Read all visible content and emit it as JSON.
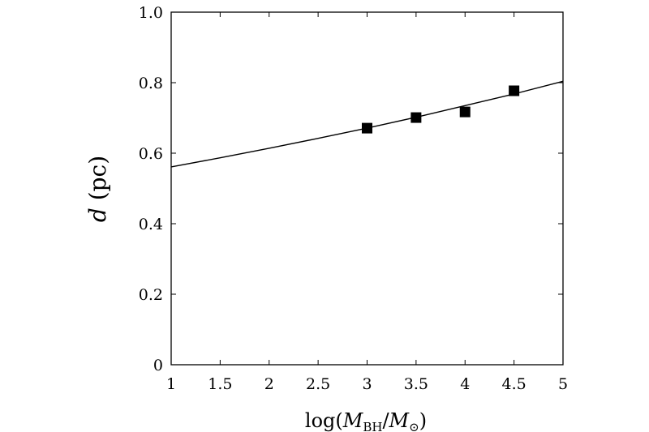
{
  "chart_data": {
    "type": "scatter",
    "title": "",
    "xlabel": {
      "prefix": "log(",
      "m1": "M",
      "sub1": "BH",
      "slash": "/",
      "m2": "M",
      "sub2": "⊙",
      "suffix": ")"
    },
    "ylabel": {
      "var": "d",
      "unit": " (pc)"
    },
    "xlim": [
      1,
      5
    ],
    "ylim": [
      0,
      1.0
    ],
    "xticks": [
      1,
      1.5,
      2,
      2.5,
      3,
      3.5,
      4,
      4.5,
      5
    ],
    "xtick_labels": [
      "1",
      "1.5",
      "2",
      "2.5",
      "3",
      "3.5",
      "4",
      "4.5",
      "5"
    ],
    "yticks": [
      0,
      0.2,
      0.4,
      0.6,
      0.8,
      1.0
    ],
    "ytick_labels": [
      "0",
      "0.2",
      "0.4",
      "0.6",
      "0.8",
      "1.0"
    ],
    "grid": false,
    "series": [
      {
        "kind": "points",
        "marker": "square",
        "color": "#000000",
        "x": [
          3.0,
          3.5,
          4.0,
          4.5
        ],
        "y": [
          0.671,
          0.701,
          0.717,
          0.777
        ]
      },
      {
        "kind": "line",
        "color": "#000000",
        "x": [
          1.0,
          1.5,
          2.0,
          2.5,
          3.0,
          3.5,
          4.0,
          4.5,
          5.0
        ],
        "y": [
          0.561,
          0.587,
          0.614,
          0.642,
          0.671,
          0.702,
          0.735,
          0.768,
          0.804
        ]
      }
    ]
  }
}
